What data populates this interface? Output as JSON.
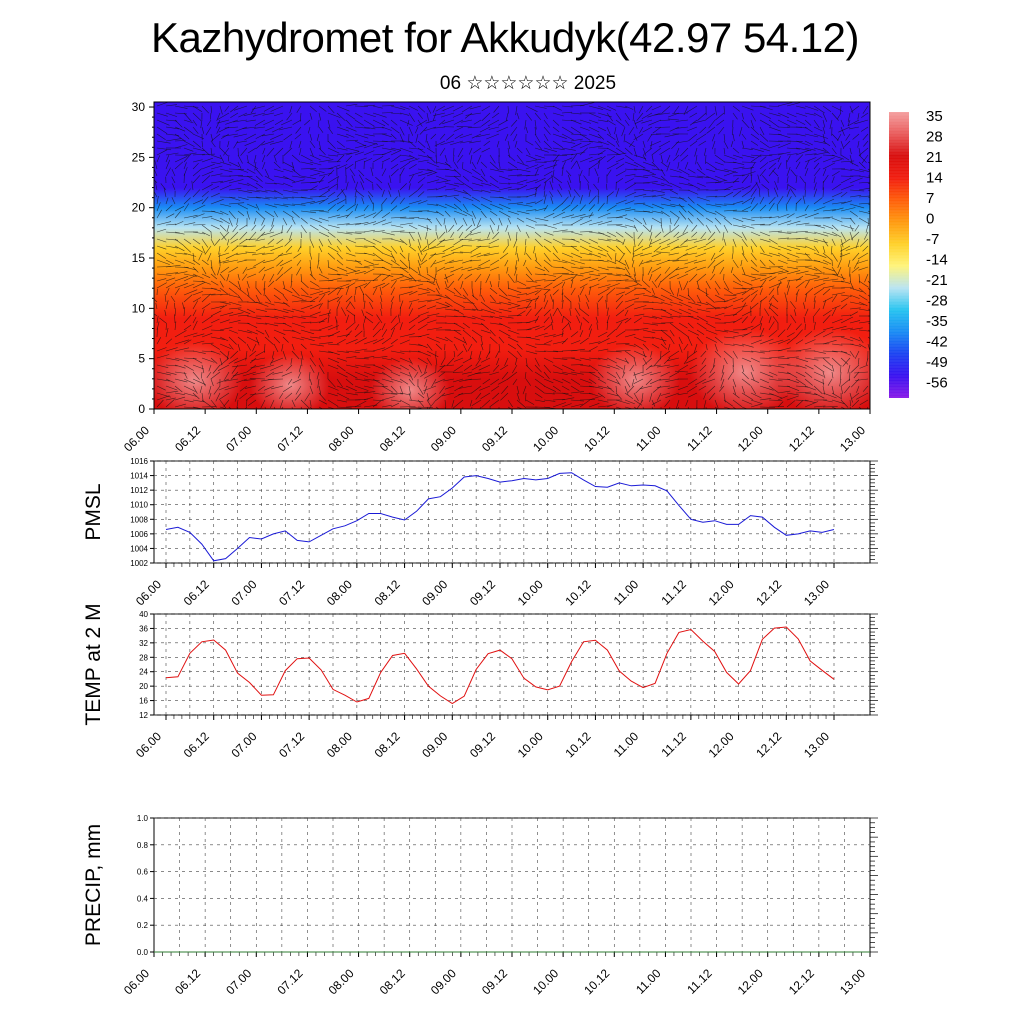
{
  "header": {
    "title": "Kazhydromet for Akkudyk(42.97 54.12)",
    "subtitle": "06 ☆☆☆☆☆☆ 2025"
  },
  "chart_data": [
    {
      "type": "heatmap",
      "panel": "temperature-wind-cross-section",
      "title": "",
      "xlabel": "",
      "ylabel": "",
      "x_tick_labels": [
        "06.00",
        "06.12",
        "07.00",
        "07.12",
        "08.00",
        "08.12",
        "09.00",
        "09.12",
        "10.00",
        "10.12",
        "11.00",
        "11.12",
        "12.00",
        "12.12",
        "13.00"
      ],
      "y_ticks": [
        0,
        5,
        10,
        15,
        20,
        25,
        30
      ],
      "ylim": [
        0,
        30.5
      ],
      "colorbar_labels": [
        "35",
        "28",
        "21",
        "14",
        "7",
        "0",
        "-7",
        "-14",
        "-21",
        "-28",
        "-35",
        "-42",
        "-49",
        "-56"
      ],
      "colorbar_range": [
        -63,
        42
      ],
      "level_temperature_profile": {
        "y": [
          0,
          3,
          6,
          9,
          12,
          14,
          16,
          18,
          20,
          22,
          24,
          27,
          30.5
        ],
        "temp": [
          24,
          22,
          19,
          15,
          8,
          0,
          -10,
          -25,
          -40,
          -52,
          -58,
          -55,
          -52
        ]
      },
      "overlay": "wind vectors",
      "colors": {
        "scale": [
          "#8a1be8",
          "#3a12f0",
          "#1c43f2",
          "#1a8cf4",
          "#27c4f0",
          "#b9e4f2",
          "#fff47a",
          "#ffd12a",
          "#ff9a10",
          "#ff5e0a",
          "#f21e10",
          "#d80e0e",
          "#e95b5b",
          "#f4a0a0"
        ]
      }
    },
    {
      "type": "line",
      "panel": "pmsl",
      "ylabel": "PMSL",
      "ylim": [
        1002,
        1016
      ],
      "y_ticks": [
        1002,
        1004,
        1006,
        1008,
        1010,
        1012,
        1014,
        1016
      ],
      "x_tick_labels": [
        "06.00",
        "06.12",
        "07.00",
        "07.12",
        "08.00",
        "08.12",
        "09.00",
        "09.12",
        "10.00",
        "10.12",
        "11.00",
        "11.12",
        "12.00",
        "12.12",
        "13.00"
      ],
      "series": [
        {
          "color": "#1a1ad6",
          "values": [
            1006.6,
            1006.9,
            1006.2,
            1004.6,
            1002.3,
            1002.6,
            1004.0,
            1005.5,
            1005.3,
            1006.0,
            1006.4,
            1005.1,
            1004.9,
            1005.8,
            1006.7,
            1007.1,
            1007.8,
            1008.8,
            1008.8,
            1008.3,
            1007.9,
            1009.1,
            1010.8,
            1011.1,
            1012.3,
            1013.8,
            1014.0,
            1013.6,
            1013.1,
            1013.3,
            1013.6,
            1013.4,
            1013.6,
            1014.3,
            1014.4,
            1013.4,
            1012.5,
            1012.4,
            1013.0,
            1012.6,
            1012.7,
            1012.6,
            1011.9,
            1009.9,
            1008.0,
            1007.6,
            1007.8,
            1007.3,
            1007.3,
            1008.5,
            1008.3,
            1006.9,
            1005.8,
            1006.0,
            1006.4,
            1006.2,
            1006.6
          ]
        }
      ]
    },
    {
      "type": "line",
      "panel": "temp-2m",
      "ylabel": "TEMP at 2 M",
      "ylim": [
        12,
        40
      ],
      "y_ticks": [
        12,
        16,
        20,
        24,
        28,
        32,
        36,
        40
      ],
      "x_tick_labels": [
        "06.00",
        "06.12",
        "07.00",
        "07.12",
        "08.00",
        "08.12",
        "09.00",
        "09.12",
        "10.00",
        "10.12",
        "11.00",
        "11.12",
        "12.00",
        "12.12",
        "13.00"
      ],
      "series": [
        {
          "color": "#e01010",
          "values": [
            22.3,
            22.6,
            29.1,
            32.3,
            32.8,
            30.0,
            23.6,
            21.0,
            17.5,
            17.6,
            24.3,
            27.6,
            27.8,
            24.5,
            19.1,
            17.5,
            15.6,
            16.6,
            23.8,
            28.5,
            29.1,
            24.8,
            20.0,
            17.3,
            15.2,
            17.2,
            24.6,
            29.0,
            30.0,
            27.6,
            22.2,
            19.8,
            19.0,
            20.0,
            26.8,
            32.3,
            32.7,
            30.0,
            24.2,
            21.4,
            19.6,
            20.8,
            29.1,
            34.9,
            35.7,
            32.5,
            29.6,
            23.8,
            20.6,
            24.3,
            33.0,
            36.1,
            36.4,
            33.1,
            27.0,
            24.4,
            21.9
          ]
        }
      ]
    },
    {
      "type": "line",
      "panel": "precip",
      "ylabel": "PRECIP, mm",
      "ylim": [
        0,
        1.0
      ],
      "y_ticks": [
        "0.0",
        "0.2",
        "0.4",
        "0.6",
        "0.8",
        "1.0"
      ],
      "x_tick_labels": [
        "06.00",
        "06.12",
        "07.00",
        "07.12",
        "08.00",
        "08.12",
        "09.00",
        "09.12",
        "10.00",
        "10.12",
        "11.00",
        "11.12",
        "12.00",
        "12.12",
        "13.00"
      ],
      "series": [
        {
          "color": "#2e7d32",
          "values": [
            0,
            0
          ]
        }
      ]
    }
  ]
}
